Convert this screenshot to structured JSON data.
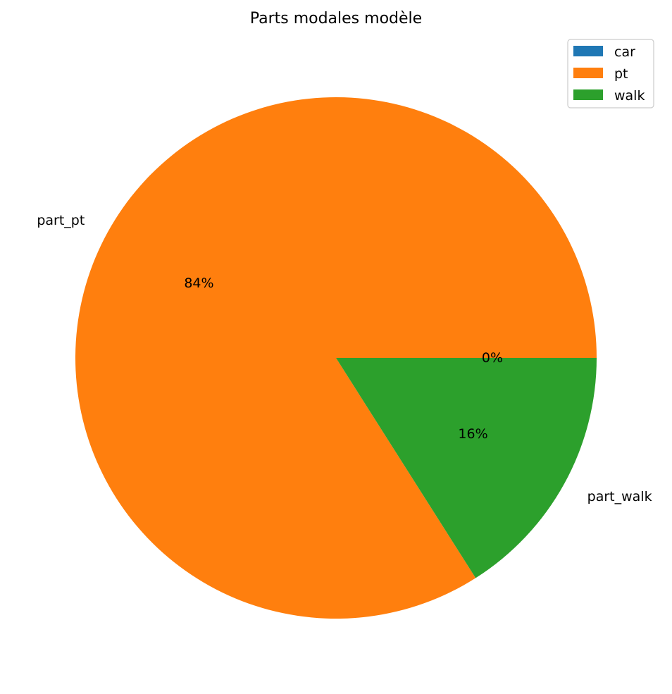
{
  "chart_data": {
    "type": "pie",
    "title": "Parts modales modèle",
    "slices": [
      {
        "label": "",
        "legend": "car",
        "value": 0,
        "pct_label": "",
        "color": "#1f77b4"
      },
      {
        "label": "part_pt",
        "legend": "pt",
        "value": 84,
        "pct_label": "84%",
        "color": "#ff7f0e"
      },
      {
        "label": "part_walk",
        "legend": "walk",
        "value": 16,
        "pct_label": "16%",
        "color": "#2ca02c"
      }
    ],
    "extra_pct_label": "0%",
    "start_angle": 0,
    "direction": "counterclockwise",
    "legend_position": "top-right"
  }
}
